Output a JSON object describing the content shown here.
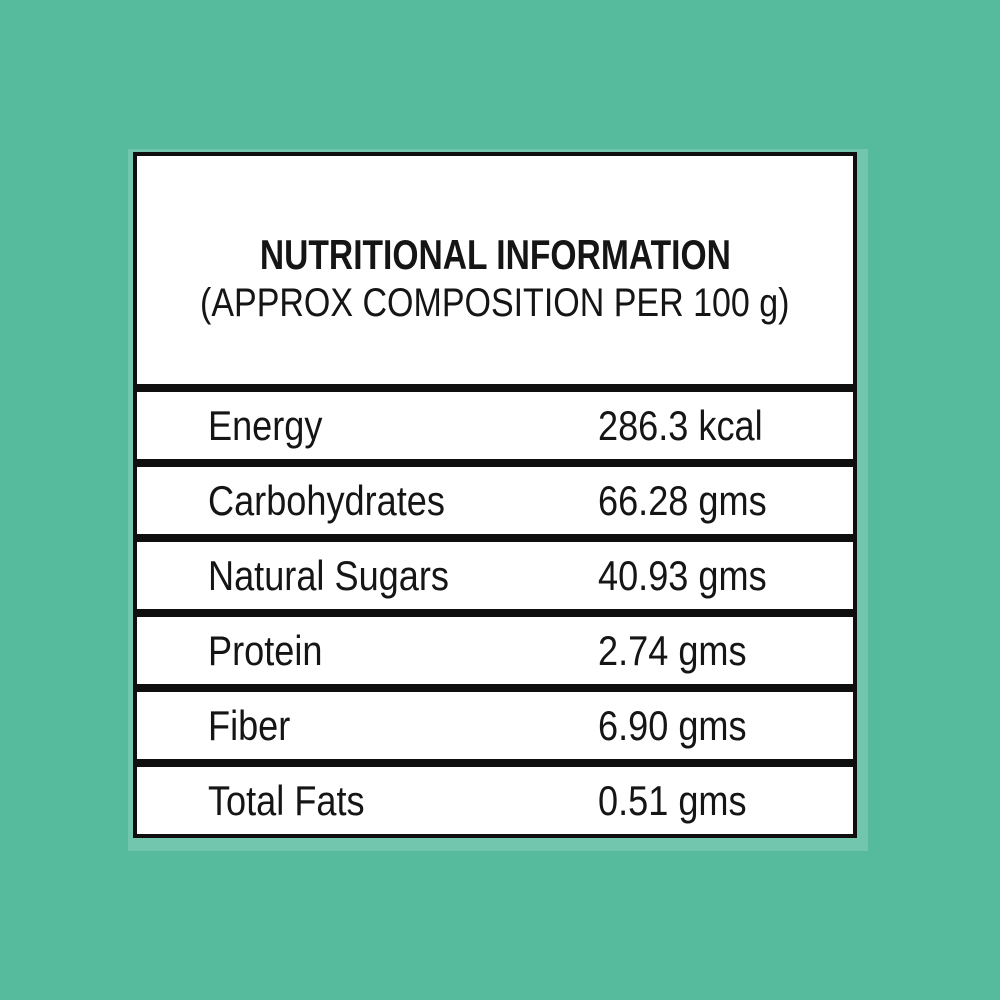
{
  "colors": {
    "background": "#56BB9D",
    "panel_background": "#FFFFFF",
    "border": "#0F0F0F",
    "text": "#151515",
    "halo": "rgba(255,255,255,0.17)"
  },
  "label_panel": {
    "title": "NUTRITIONAL INFORMATION",
    "subtitle": "(APPROX COMPOSITION PER 100 g)",
    "rows": [
      {
        "label": "Energy",
        "value": "286.3 kcal"
      },
      {
        "label": "Carbohydrates",
        "value": "66.28 gms"
      },
      {
        "label": "Natural Sugars",
        "value": "40.93 gms"
      },
      {
        "label": "Protein",
        "value": "2.74 gms"
      },
      {
        "label": "Fiber",
        "value": "6.90 gms"
      },
      {
        "label": "Total Fats",
        "value": "0.51 gms"
      }
    ]
  }
}
